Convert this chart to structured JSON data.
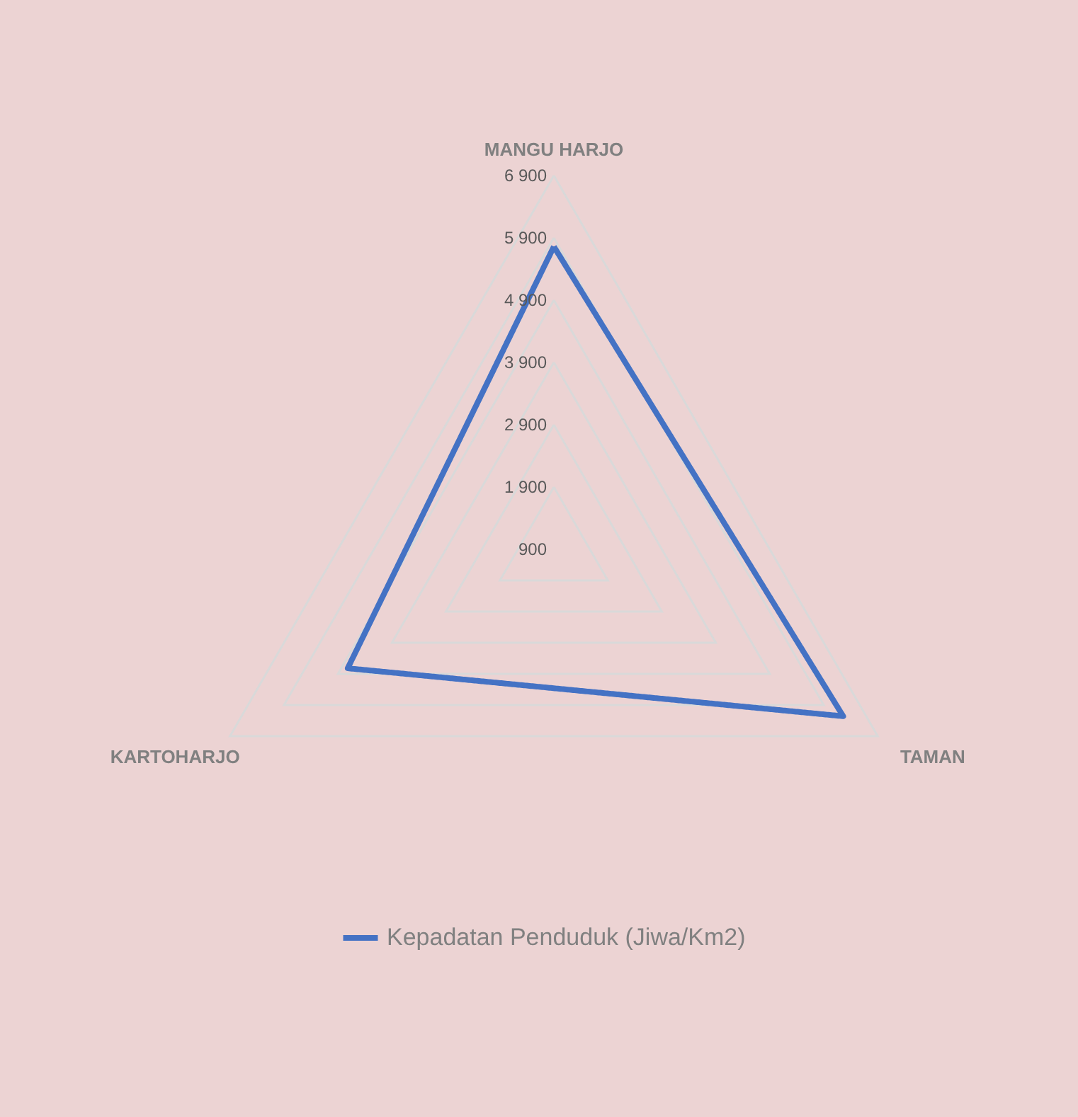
{
  "chart_data": {
    "type": "radar",
    "categories": [
      "MANGU HARJO",
      "TAMAN",
      "KARTOHARJO"
    ],
    "series": [
      {
        "name": "Kepadatan Penduduk (Jiwa/Km2)",
        "color": "#4472c4",
        "values": [
          5760,
          6260,
          4720
        ]
      }
    ],
    "ylim": [
      900,
      6900
    ],
    "yticks": [
      900,
      1900,
      2900,
      3900,
      4900,
      5900,
      6900
    ],
    "grid": true,
    "legend": "bottom",
    "marker": "none",
    "line_style": "solid"
  }
}
